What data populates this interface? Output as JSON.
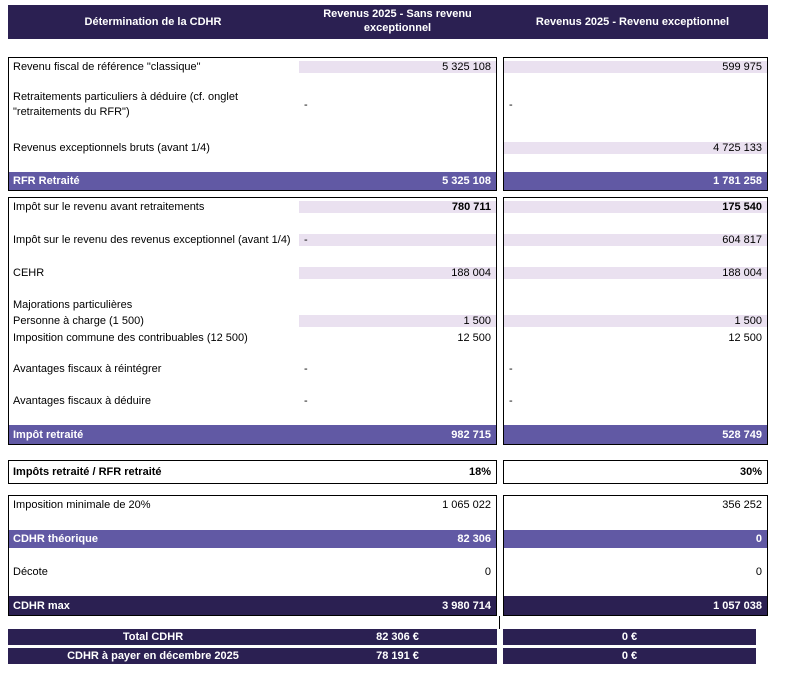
{
  "colors": {
    "dark_purple": "#2B2052",
    "medium_purple": "#6159A4",
    "light_fill": "#EAE1F0"
  },
  "header": {
    "title": "Détermination de la CDHR",
    "col1": "Revenus 2025 - Sans revenu exceptionnel",
    "col2": "Revenus 2025 -  Revenu exceptionnel"
  },
  "table": {
    "blocks": [
      {
        "rows": [
          {
            "type": "data",
            "h": 17,
            "label": "Revenu fiscal de référence \"classique\"",
            "v1": "5 325 108",
            "v2": "599 975",
            "input1": true,
            "input2": true
          },
          {
            "type": "spacer",
            "h": 13
          },
          {
            "type": "data",
            "h": 34,
            "label": "Retraitements particuliers à déduire (cf. onglet \"retraitements du RFR\")",
            "wrap": true,
            "v1": "-",
            "v2": "-",
            "input1": false,
            "input2": false
          },
          {
            "type": "spacer",
            "h": 17
          },
          {
            "type": "data",
            "h": 17,
            "label": "Revenus exceptionnels bruts (avant 1/4)",
            "v1": "",
            "v2": "4 725 133",
            "input1": true,
            "input2": true
          },
          {
            "type": "spacer",
            "h": 16
          },
          {
            "type": "total",
            "h": 18,
            "label": "RFR Retraité",
            "v1": "5 325 108",
            "v2": "1 781 258"
          }
        ]
      },
      {
        "rows": [
          {
            "type": "data",
            "h": 17,
            "label": "Impôt sur le revenu avant retraitements",
            "v1": "780 711",
            "v2": "175 540",
            "input1": true,
            "input2": true,
            "boldValues": true
          },
          {
            "type": "spacer",
            "h": 16
          },
          {
            "type": "data",
            "h": 17,
            "label": "Impôt sur le revenu des revenus exceptionnel (avant 1/4)",
            "v1": "-",
            "v2": "604 817",
            "input1": true,
            "input2": true
          },
          {
            "type": "spacer",
            "h": 16
          },
          {
            "type": "data",
            "h": 17,
            "label": "CEHR",
            "v1": "188 004",
            "v2": "188 004",
            "input1": true,
            "input2": true
          },
          {
            "type": "spacer",
            "h": 16
          },
          {
            "type": "data",
            "h": 16,
            "label": "Majorations particulières",
            "v1": "",
            "v2": "",
            "input1": false,
            "input2": false
          },
          {
            "type": "data",
            "h": 16,
            "label": "Personne à charge (1 500)",
            "v1": "1 500",
            "v2": "1 500",
            "input1": true,
            "input2": true
          },
          {
            "type": "data",
            "h": 17,
            "label": "Imposition commune des contribuables (12 500)",
            "v1": "12 500",
            "v2": "12 500",
            "input1": false,
            "input2": false
          },
          {
            "type": "spacer",
            "h": 15
          },
          {
            "type": "data",
            "h": 16,
            "label": "Avantages fiscaux à réintégrer",
            "v1": "-",
            "v2": "-",
            "input1": false,
            "input2": false
          },
          {
            "type": "spacer",
            "h": 16
          },
          {
            "type": "data",
            "h": 16,
            "label": "Avantages fiscaux à déduire",
            "v1": "-",
            "v2": "-",
            "input1": false,
            "input2": false
          },
          {
            "type": "spacer",
            "h": 16
          },
          {
            "type": "total",
            "h": 19,
            "label": "Impôt retraité",
            "v1": "982 715",
            "v2": "528 749"
          }
        ]
      },
      {
        "rows": [
          {
            "type": "ratio",
            "h": 22,
            "label": "Impôts retraité / RFR retraité",
            "v1": "18%",
            "v2": "30%",
            "input1": false,
            "input2": false,
            "boldValues": true
          }
        ]
      },
      {
        "rows": [
          {
            "type": "data",
            "h": 17,
            "label": "Imposition minimale de 20%",
            "v1": "1 065 022",
            "v2": "356 252",
            "input1": false,
            "input2": false
          },
          {
            "type": "spacer",
            "h": 17
          },
          {
            "type": "total",
            "h": 18,
            "label": "CDHR théorique",
            "v1": "82 306",
            "v2": "0"
          },
          {
            "type": "spacer",
            "h": 16
          },
          {
            "type": "data",
            "h": 16,
            "label": "Décote",
            "v1": "0",
            "v2": "0",
            "input1": false,
            "input2": false
          },
          {
            "type": "spacer",
            "h": 16
          },
          {
            "type": "grand",
            "h": 19,
            "label": "CDHR max",
            "v1": "3 980 714",
            "v2": "1 057 038"
          }
        ]
      }
    ]
  },
  "summary": {
    "rows": [
      {
        "label": "Total CDHR",
        "v1": "82 306 €",
        "v2": "0 €"
      },
      {
        "label": "CDHR à payer en décembre 2025",
        "v1": "78 191 €",
        "v2": "0 €"
      }
    ]
  }
}
